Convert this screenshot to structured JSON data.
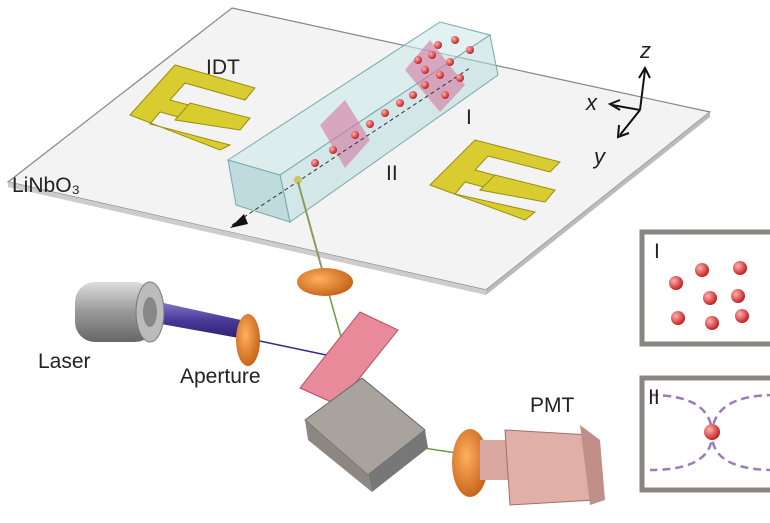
{
  "labels": {
    "idt": "IDT",
    "substrate": "LiNbO₃",
    "region_1": "I",
    "region_2": "II",
    "axis_x": "x",
    "axis_y": "y",
    "axis_z": "z",
    "laser": "Laser",
    "aperture": "Aperture",
    "pmt": "PMT"
  },
  "insets": [
    {
      "label": "I"
    },
    {
      "label": "II"
    }
  ]
}
